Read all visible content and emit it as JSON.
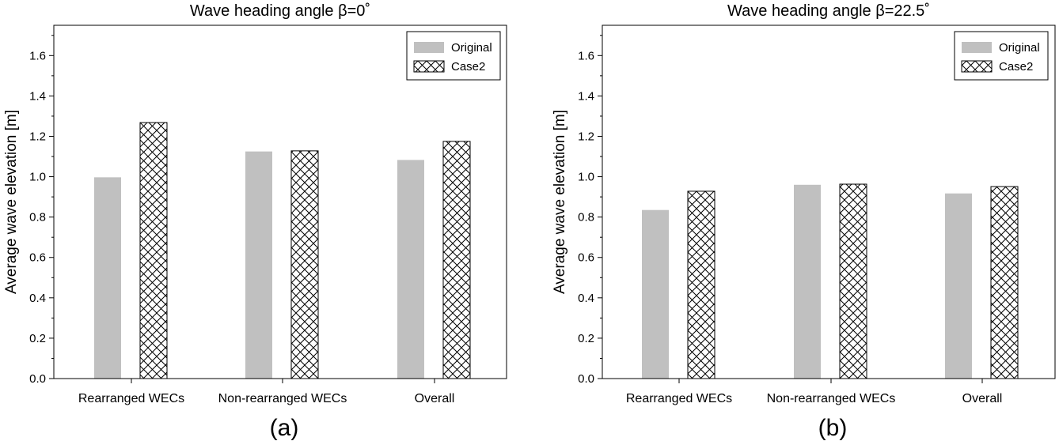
{
  "chart_data": [
    {
      "type": "bar",
      "panel_label": "(a)",
      "title": "Wave heading angle β=0˚",
      "xlabel": "",
      "ylabel": "Average wave elevation [m]",
      "ylim": [
        0,
        1.75
      ],
      "yticks": [
        "0.0",
        "0.2",
        "0.4",
        "0.6",
        "0.8",
        "1.0",
        "1.2",
        "1.4",
        "1.6"
      ],
      "categories": [
        "Rearranged WECs",
        "Non-rearranged WECs",
        "Overall"
      ],
      "series": [
        {
          "name": "Original",
          "fill": "#c0c0c0",
          "pattern": "solid",
          "values": [
            0.997,
            1.125,
            1.083
          ]
        },
        {
          "name": "Case2",
          "fill": "#ffffff",
          "pattern": "crosshatch",
          "values": [
            1.268,
            1.128,
            1.175
          ]
        }
      ],
      "legend_position": "top-right",
      "grid": false
    },
    {
      "type": "bar",
      "panel_label": "(b)",
      "title": "Wave heading angle β=22.5˚",
      "xlabel": "",
      "ylabel": "Average wave elevation [m]",
      "ylim": [
        0,
        1.75
      ],
      "yticks": [
        "0.0",
        "0.2",
        "0.4",
        "0.6",
        "0.8",
        "1.0",
        "1.2",
        "1.4",
        "1.6"
      ],
      "categories": [
        "Rearranged WECs",
        "Non-rearranged WECs",
        "Overall"
      ],
      "series": [
        {
          "name": "Original",
          "fill": "#c0c0c0",
          "pattern": "solid",
          "values": [
            0.835,
            0.96,
            0.917
          ]
        },
        {
          "name": "Case2",
          "fill": "#ffffff",
          "pattern": "crosshatch",
          "values": [
            0.928,
            0.963,
            0.951
          ]
        }
      ],
      "legend_position": "top-right",
      "grid": false
    }
  ]
}
